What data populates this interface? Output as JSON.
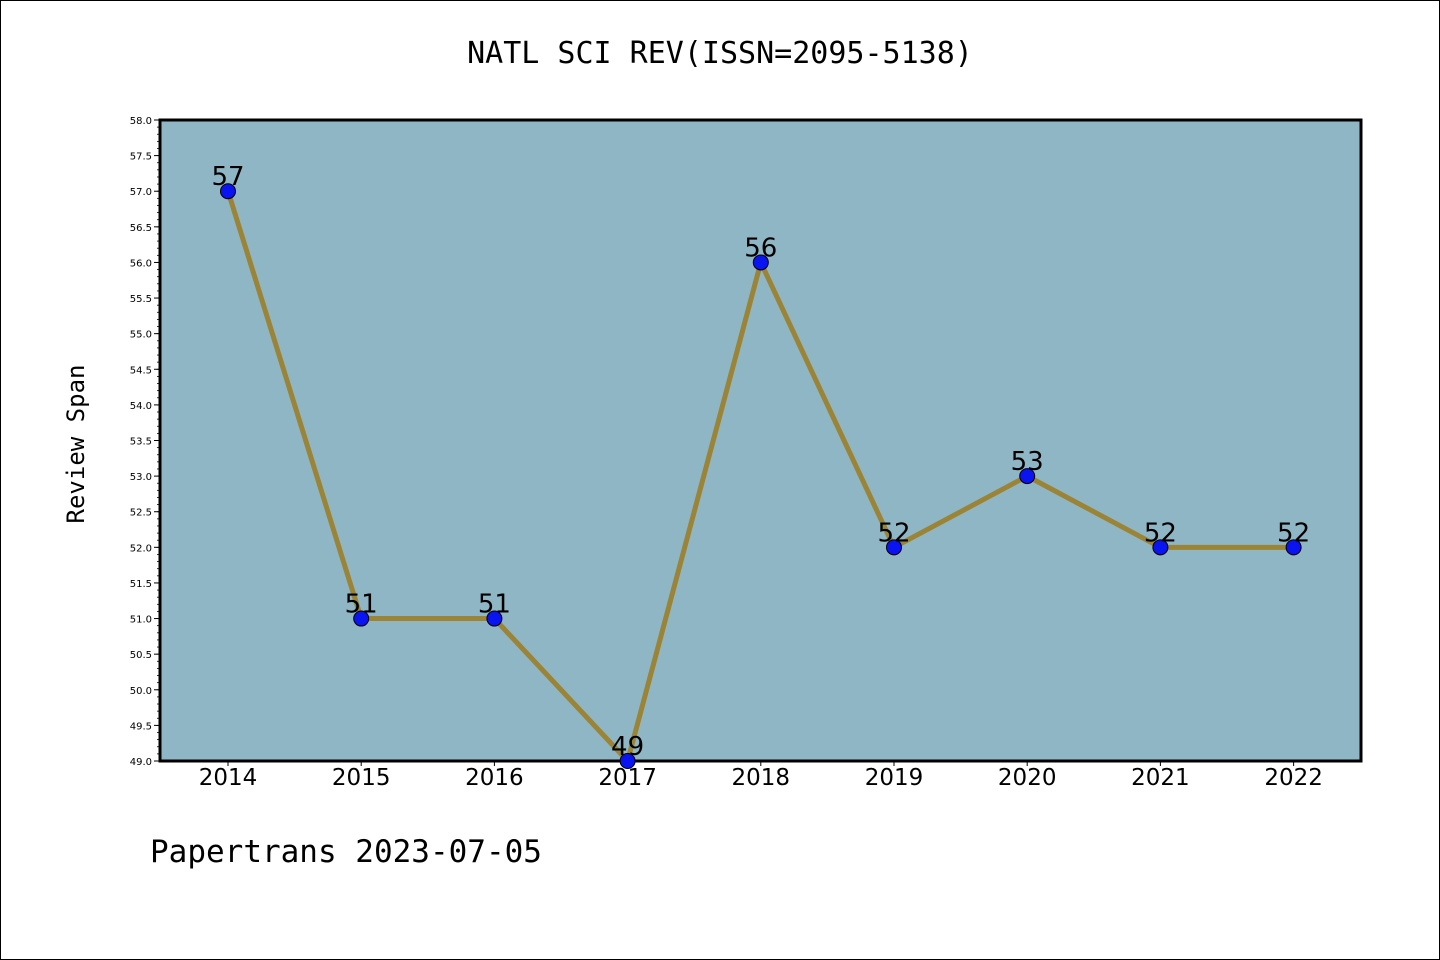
{
  "chart_data": {
    "type": "line",
    "title": "NATL SCI REV(ISSN=2095-5138)",
    "xlabel": "",
    "ylabel": "Review Span",
    "categories": [
      "2014",
      "2015",
      "2016",
      "2017",
      "2018",
      "2019",
      "2020",
      "2021",
      "2022"
    ],
    "values": [
      57,
      51,
      51,
      49,
      56,
      52,
      53,
      52,
      52
    ],
    "data_labels": [
      "57",
      "51",
      "51",
      "49",
      "56",
      "52",
      "53",
      "52",
      "52"
    ],
    "ylim": [
      49.0,
      58.0
    ],
    "yticks": [
      "49.0",
      "49.5",
      "50.0",
      "50.5",
      "51.0",
      "51.5",
      "52.0",
      "52.5",
      "53.0",
      "53.5",
      "54.0",
      "54.5",
      "55.0",
      "55.5",
      "56.0",
      "56.5",
      "57.0",
      "57.5",
      "58.0"
    ],
    "grid": false,
    "colors": {
      "plot_background": "#8fb6c5",
      "line": "#9b8435",
      "marker": "#0a14f0"
    }
  },
  "footer": "Papertrans 2023-07-05"
}
